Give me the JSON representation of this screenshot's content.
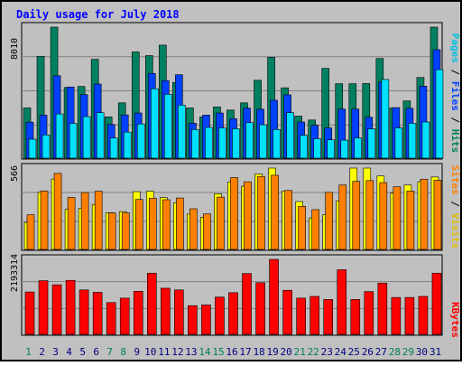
{
  "chart_data": {
    "type": "bar",
    "title": "Daily usage for July 2018",
    "categories": [
      "1",
      "2",
      "3",
      "4",
      "5",
      "6",
      "7",
      "8",
      "9",
      "10",
      "11",
      "12",
      "13",
      "14",
      "15",
      "16",
      "17",
      "18",
      "19",
      "20",
      "21",
      "22",
      "23",
      "24",
      "25",
      "26",
      "27",
      "28",
      "29",
      "30",
      "31"
    ],
    "weekend_days": [
      "1",
      "7",
      "8",
      "14",
      "15",
      "21",
      "22",
      "28",
      "29"
    ],
    "panels": [
      {
        "id": "top",
        "scale_label": "8010",
        "ymax": 8010,
        "series": [
          {
            "name": "Hits",
            "color": "#008060",
            "values": [
              3070,
              6230,
              8010,
              4320,
              4380,
              6040,
              2520,
              3380,
              6490,
              6270,
              6910,
              4630,
              3070,
              2520,
              3130,
              2940,
              3380,
              4760,
              6170,
              4300,
              2570,
              2330,
              5490,
              4550,
              4550,
              4560,
              6090,
              3070,
              3500,
              4930,
              8010
            ]
          },
          {
            "name": "Files",
            "color": "#0040ff",
            "values": [
              2200,
              2630,
              5040,
              4350,
              3880,
              4530,
              2060,
              2640,
              2760,
              5180,
              4740,
              5100,
              2140,
              2630,
              2760,
              2410,
              3060,
              2990,
              3540,
              3870,
              2210,
              2010,
              1850,
              3000,
              3000,
              2500,
              4660,
              3090,
              3050,
              4400,
              6630
            ]
          },
          {
            "name": "Pages",
            "color": "#00e0ff",
            "values": [
              1160,
              1420,
              2700,
              2120,
              2540,
              2780,
              1230,
              1590,
              2090,
              4240,
              3900,
              3240,
              1750,
              1880,
              1850,
              1800,
              2170,
              2040,
              1750,
              2780,
              1400,
              1190,
              1120,
              1100,
              1240,
              1790,
              4810,
              1850,
              2130,
              2210,
              5410
            ]
          }
        ]
      },
      {
        "id": "middle",
        "scale_label": "566",
        "ymax": 566,
        "series": [
          {
            "name": "Visits",
            "color": "#ffff00",
            "values": [
              188,
              397,
              490,
              279,
              287,
              313,
              255,
              263,
              402,
              405,
              361,
              323,
              246,
              224,
              387,
              470,
              440,
              525,
              566,
              407,
              333,
              219,
              241,
              338,
              566,
              566,
              511,
              392,
              448,
              471,
              504
            ]
          },
          {
            "name": "Sites",
            "color": "#ff8000",
            "values": [
              241,
              407,
              529,
              362,
              396,
              405,
              254,
              254,
              348,
              356,
              346,
              358,
              283,
              247,
              364,
              500,
              471,
              508,
              516,
              410,
              299,
              277,
              397,
              448,
              474,
              479,
              465,
              436,
              406,
              489,
              481
            ]
          }
        ]
      },
      {
        "id": "bottom",
        "scale_label": "2193314",
        "ymax": 2193314,
        "series": [
          {
            "name": "KBytes",
            "color": "#ff0000",
            "values": [
              1240000,
              1570000,
              1450000,
              1580000,
              1300000,
              1230000,
              930000,
              1060000,
              1260000,
              1790000,
              1350000,
              1300000,
              840000,
              860000,
              1090000,
              1220000,
              1780000,
              1510000,
              2193314,
              1290000,
              1060000,
              1110000,
              1020000,
              1890000,
              1020000,
              1250000,
              1500000,
              1080000,
              1080000,
              1110000,
              1790000
            ]
          }
        ]
      }
    ]
  },
  "legend": {
    "top": [
      {
        "text": "Pages",
        "color": "#00c0e0"
      },
      {
        "text": " / ",
        "color": "#000000"
      },
      {
        "text": "Files",
        "color": "#0040ff"
      },
      {
        "text": " / ",
        "color": "#000000"
      },
      {
        "text": "Hits",
        "color": "#008060"
      }
    ],
    "middle": [
      {
        "text": "Sites",
        "color": "#ff8000"
      },
      {
        "text": " / ",
        "color": "#000000"
      },
      {
        "text": "Visits",
        "color": "#e0c000"
      }
    ],
    "bottom": [
      {
        "text": "KBytes",
        "color": "#ff0000"
      }
    ]
  },
  "colors": {
    "frame": "#c0c0c0",
    "title": "#0000ff",
    "weekday_label": "#000080",
    "weekend_label": "#00805c"
  }
}
